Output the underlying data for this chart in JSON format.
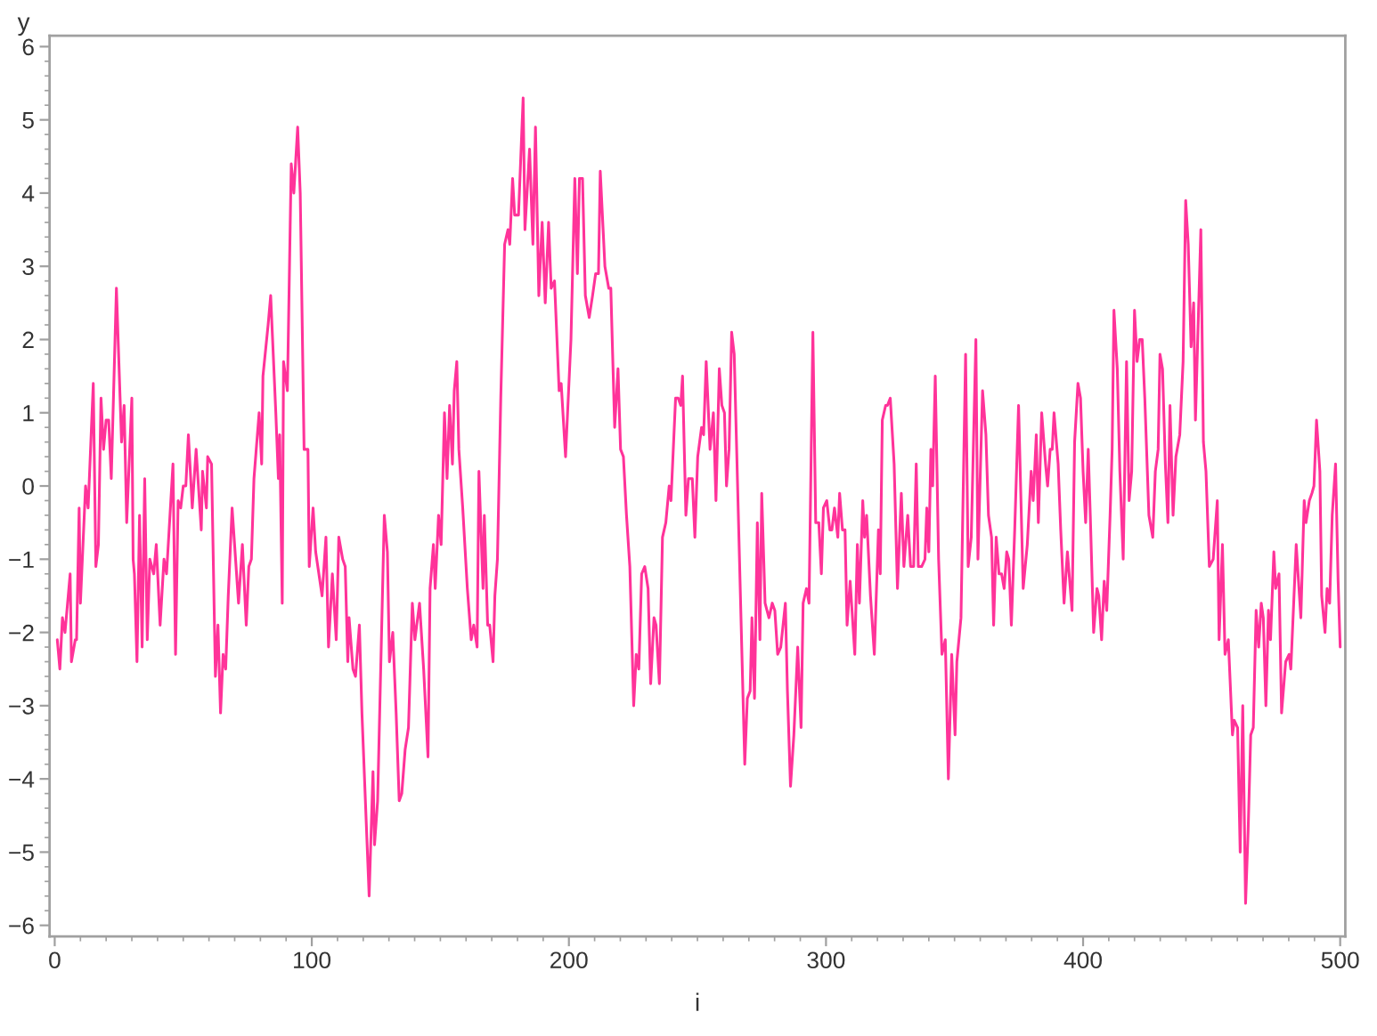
{
  "chart_data": {
    "type": "line",
    "xlabel": "i",
    "ylabel": "y",
    "color": "#ff3399",
    "x": [
      1,
      2,
      3,
      4,
      6,
      6.5,
      8,
      8.5,
      9.5,
      10,
      12,
      13,
      15,
      16,
      17,
      18,
      19,
      20,
      21,
      22,
      24,
      26,
      27,
      28,
      30,
      30.5,
      31,
      32,
      33,
      34,
      35,
      36,
      37,
      38.5,
      39.5,
      41,
      42.5,
      43.5,
      46,
      47,
      48,
      49,
      50,
      51,
      52,
      53.5,
      55,
      57,
      57.5,
      59,
      59.5,
      61,
      62.5,
      63.5,
      64.5,
      65.5,
      66.5,
      67.5,
      69,
      71.5,
      73,
      74.5,
      75.5,
      76.5,
      77.5,
      79.5,
      80.5,
      81,
      83,
      84,
      86,
      87,
      87.5,
      88.5,
      89,
      90.5,
      92,
      93,
      94.5,
      95.5,
      97,
      98.5,
      99,
      100.5,
      101.5,
      104,
      105.5,
      106.5,
      108,
      109.5,
      110.5,
      112,
      113,
      114,
      114.5,
      116,
      117,
      118.5,
      119.5,
      122.3,
      123.8,
      124.4,
      125.6,
      128.2,
      129.4,
      130.2,
      131.5,
      132.8,
      134,
      135,
      136.3,
      137.6,
      139.1,
      140.1,
      141.9,
      143.5,
      145.2,
      146,
      147.3,
      148,
      149.3,
      150.3,
      151.6,
      152.6,
      153.6,
      154.7,
      155.4,
      156.4,
      157.2,
      158.7,
      160.5,
      162,
      163,
      164.3,
      165,
      166.6,
      167.1,
      168.4,
      169.2,
      170.5,
      171.2,
      172.2,
      173.5,
      175,
      176.3,
      177,
      178.1,
      178.9,
      180.4,
      182.2,
      182.9,
      184.7,
      186,
      187,
      188.3,
      189.6,
      190.8,
      192.1,
      193.1,
      194.4,
      196.2,
      197,
      198.7,
      200.8,
      202.3,
      203.3,
      204.1,
      205.3,
      206.4,
      207.9,
      209.2,
      210.4,
      211.5,
      212.2,
      214,
      215.5,
      216.3,
      217.8,
      219.1,
      220.1,
      221.2,
      222.4,
      223.7,
      225.2,
      226.2,
      227.2,
      228.3,
      229.5,
      230.8,
      231.8,
      233.1,
      233.9,
      235.2,
      236.4,
      237.7,
      239,
      239.7,
      241.5,
      242.5,
      243.5,
      244.2,
      245.5,
      246.5,
      248,
      249,
      250.1,
      251.6,
      252.4,
      253.4,
      254.9,
      256.2,
      257.2,
      258.5,
      259.5,
      260.5,
      261.3,
      262.3,
      263.3,
      264.3,
      268.4,
      269.4,
      270.5,
      271.2,
      272.2,
      273.3,
      274.3,
      275,
      276.3,
      277.8,
      279.1,
      280.1,
      281.2,
      282.4,
      284.2,
      285,
      286.2,
      287.5,
      289,
      290.3,
      291.1,
      292.4,
      293.4,
      294.9,
      296,
      297.2,
      298.2,
      299,
      300.3,
      301.5,
      302.3,
      303.3,
      304.6,
      305.3,
      306.4,
      307.4,
      308.2,
      309.4,
      311.2,
      312.2,
      313,
      314.3,
      315,
      315.8,
      317.3,
      318.8,
      320.4,
      321.1,
      321.9,
      323.2,
      323.9,
      325,
      326.5,
      327.8,
      329.3,
      330.3,
      331.8,
      332.9,
      334.1,
      335.1,
      335.9,
      337.2,
      338.5,
      339.2,
      340,
      340.8,
      341.5,
      342.5,
      343.8,
      345.1,
      346.4,
      347.6,
      348.9,
      350.2,
      350.9,
      352.5,
      354.3,
      355.3,
      356.5,
      358.3,
      359.1,
      360.9,
      362.2,
      363.2,
      364.4,
      365.2,
      366.2,
      367.3,
      368.3,
      369.3,
      370.3,
      371.1,
      372.1,
      373.4,
      374.9,
      376.7,
      378.3,
      379.8,
      380.6,
      381.8,
      382.6,
      383.9,
      385.4,
      386.2,
      387.2,
      388,
      388.7,
      390.3,
      391.3,
      392.6,
      393.9,
      395.7,
      396.7,
      398,
      399,
      400,
      401,
      402,
      402.8,
      404.1,
      405.4,
      406.1,
      407.2,
      408.2,
      409.2,
      410.5,
      411.3,
      412,
      413.3,
      414.3,
      415.6,
      416.9,
      417.9,
      418.9,
      420,
      421,
      422,
      423,
      424,
      425.6,
      427.1,
      428.1,
      429.2,
      429.9,
      430.9,
      432,
      433,
      433.8,
      435,
      436.1,
      437.6,
      438.9,
      439.9,
      440.9,
      442,
      443,
      443.7,
      445.8,
      446.8,
      447.8,
      449.1,
      450.6,
      452.2,
      452.9,
      454.2,
      455.2,
      456.5,
      458.1,
      458.8,
      460.1,
      461.1,
      462.1,
      463.2,
      464.2,
      465.2,
      466.2,
      467.3,
      468.3,
      469.3,
      470.1,
      471.1,
      472.1,
      472.9,
      474.2,
      474.9,
      476.2,
      477.2,
      478.8,
      480.1,
      480.8,
      482.9,
      484.7,
      486,
      486.7,
      488,
      489,
      489.8,
      490.8,
      492.1,
      492.8,
      494.1,
      494.9,
      495.9,
      496.9,
      498.2,
      499.2,
      500
    ],
    "values": [
      -2.1,
      -2.5,
      -1.8,
      -2.0,
      -1.2,
      -2.4,
      -2.1,
      -2.1,
      -0.3,
      -1.6,
      0.0,
      -0.3,
      1.4,
      -1.1,
      -0.8,
      1.2,
      0.5,
      0.9,
      0.9,
      0.1,
      2.7,
      0.6,
      1.1,
      -0.5,
      1.2,
      -1.0,
      -1.2,
      -2.4,
      -0.4,
      -2.2,
      0.1,
      -2.1,
      -1.0,
      -1.2,
      -0.8,
      -1.9,
      -1.0,
      -1.2,
      0.3,
      -2.3,
      -0.2,
      -0.3,
      0.0,
      0.0,
      0.7,
      -0.3,
      0.5,
      -0.6,
      0.2,
      -0.3,
      0.4,
      0.3,
      -2.6,
      -1.9,
      -3.1,
      -2.3,
      -2.5,
      -1.5,
      -0.3,
      -1.6,
      -0.8,
      -1.9,
      -1.1,
      -1.0,
      0.1,
      1.0,
      0.3,
      1.5,
      2.2,
      2.6,
      1.0,
      0.1,
      0.7,
      -1.6,
      1.7,
      1.3,
      4.4,
      4.0,
      4.9,
      4.0,
      0.5,
      0.5,
      -1.1,
      -0.3,
      -0.9,
      -1.5,
      -0.7,
      -2.2,
      -1.2,
      -2.1,
      -0.7,
      -1.0,
      -1.1,
      -2.4,
      -1.8,
      -2.5,
      -2.6,
      -1.9,
      -3.1,
      -5.6,
      -3.9,
      -4.9,
      -4.3,
      -0.4,
      -0.9,
      -2.4,
      -2.0,
      -3.1,
      -4.3,
      -4.2,
      -3.6,
      -3.3,
      -1.6,
      -2.1,
      -1.6,
      -2.5,
      -3.7,
      -1.4,
      -0.8,
      -1.4,
      -0.4,
      -0.8,
      1.0,
      0.1,
      1.1,
      0.3,
      1.3,
      1.7,
      0.5,
      -0.3,
      -1.4,
      -2.1,
      -1.9,
      -2.2,
      0.2,
      -1.4,
      -0.4,
      -1.9,
      -1.9,
      -2.4,
      -1.5,
      -1.0,
      1.2,
      3.3,
      3.5,
      3.3,
      4.2,
      3.7,
      3.7,
      5.3,
      3.5,
      4.6,
      3.3,
      4.9,
      2.6,
      3.6,
      2.5,
      3.6,
      2.7,
      2.8,
      1.3,
      1.4,
      0.4,
      2.0,
      4.2,
      2.9,
      4.2,
      4.2,
      2.6,
      2.3,
      2.6,
      2.9,
      2.9,
      4.3,
      3.0,
      2.7,
      2.7,
      0.8,
      1.6,
      0.5,
      0.4,
      -0.4,
      -1.1,
      -3.0,
      -2.3,
      -2.5,
      -1.2,
      -1.1,
      -1.4,
      -2.7,
      -1.8,
      -1.9,
      -2.7,
      -0.7,
      -0.5,
      0.0,
      -0.2,
      1.2,
      1.2,
      1.1,
      1.5,
      -0.4,
      0.1,
      0.1,
      -0.7,
      0.4,
      0.8,
      0.7,
      1.7,
      0.5,
      1.0,
      -0.2,
      1.6,
      1.1,
      1.0,
      0.0,
      0.5,
      2.1,
      1.8,
      -3.8,
      -2.9,
      -2.8,
      -1.8,
      -2.9,
      -0.5,
      -2.1,
      -0.1,
      -1.6,
      -1.8,
      -1.6,
      -1.7,
      -2.3,
      -2.2,
      -1.6,
      -2.8,
      -4.1,
      -3.4,
      -2.2,
      -3.3,
      -1.6,
      -1.4,
      -1.6,
      2.1,
      -0.5,
      -0.5,
      -1.2,
      -0.3,
      -0.2,
      -0.6,
      -0.6,
      -0.3,
      -0.7,
      -0.1,
      -0.6,
      -0.6,
      -1.9,
      -1.3,
      -2.3,
      -0.8,
      -1.6,
      -0.2,
      -0.7,
      -0.4,
      -1.5,
      -2.3,
      -0.6,
      -1.2,
      0.9,
      1.1,
      1.1,
      1.2,
      0.3,
      -1.4,
      -0.1,
      -1.1,
      -0.4,
      -1.1,
      -1.1,
      0.3,
      -1.1,
      -1.1,
      -1.0,
      -0.3,
      -0.9,
      0.5,
      0.0,
      1.5,
      -1.0,
      -2.3,
      -2.1,
      -4.0,
      -2.3,
      -3.4,
      -2.4,
      -1.8,
      1.8,
      -1.1,
      -0.7,
      2.0,
      -1.0,
      1.3,
      0.7,
      -0.4,
      -0.7,
      -1.9,
      -0.7,
      -1.2,
      -1.2,
      -1.4,
      -0.9,
      -1.0,
      -1.9,
      -0.6,
      1.1,
      -1.4,
      -0.8,
      0.2,
      -0.2,
      0.7,
      -0.5,
      1.0,
      0.3,
      0.0,
      0.5,
      0.5,
      1.0,
      0.3,
      -0.6,
      -1.6,
      -0.9,
      -1.7,
      0.6,
      1.4,
      1.2,
      0.2,
      -0.5,
      0.5,
      -0.4,
      -2.0,
      -1.4,
      -1.5,
      -2.1,
      -1.3,
      -1.7,
      -0.4,
      0.5,
      2.4,
      1.6,
      0.2,
      -1.0,
      1.7,
      -0.2,
      0.2,
      2.4,
      1.7,
      2.0,
      2.0,
      1.2,
      -0.4,
      -0.7,
      0.2,
      0.5,
      1.8,
      1.6,
      0.3,
      -0.5,
      1.1,
      -0.4,
      0.4,
      0.7,
      1.7,
      3.9,
      3.3,
      1.9,
      2.5,
      0.9,
      3.5,
      0.6,
      0.2,
      -1.1,
      -1.0,
      -0.2,
      -2.1,
      -0.8,
      -2.3,
      -2.1,
      -3.4,
      -3.2,
      -3.3,
      -5.0,
      -3.0,
      -5.7,
      -4.7,
      -3.4,
      -3.3,
      -1.7,
      -2.2,
      -1.6,
      -1.8,
      -3.0,
      -1.7,
      -2.1,
      -0.9,
      -1.4,
      -1.2,
      -3.1,
      -2.4,
      -2.3,
      -2.5,
      -0.8,
      -1.8,
      -0.2,
      -0.5,
      -0.2,
      -0.1,
      0.0,
      0.9,
      0.2,
      -1.5,
      -2.0,
      -1.4,
      -1.6,
      -0.4,
      0.3,
      -1.3,
      -2.2
    ],
    "xlim": [
      -2,
      502
    ],
    "ylim": [
      -6.15,
      6.15
    ],
    "xticks": [
      0,
      100,
      200,
      300,
      400,
      500
    ],
    "yticks": [
      {
        "value": -6,
        "label": "−6"
      },
      {
        "value": -5,
        "label": "−5"
      },
      {
        "value": -4,
        "label": "−4"
      },
      {
        "value": -3,
        "label": "−3"
      },
      {
        "value": -2,
        "label": "−2"
      },
      {
        "value": -1,
        "label": "−1"
      },
      0,
      1,
      2,
      3,
      4,
      5,
      6
    ]
  }
}
